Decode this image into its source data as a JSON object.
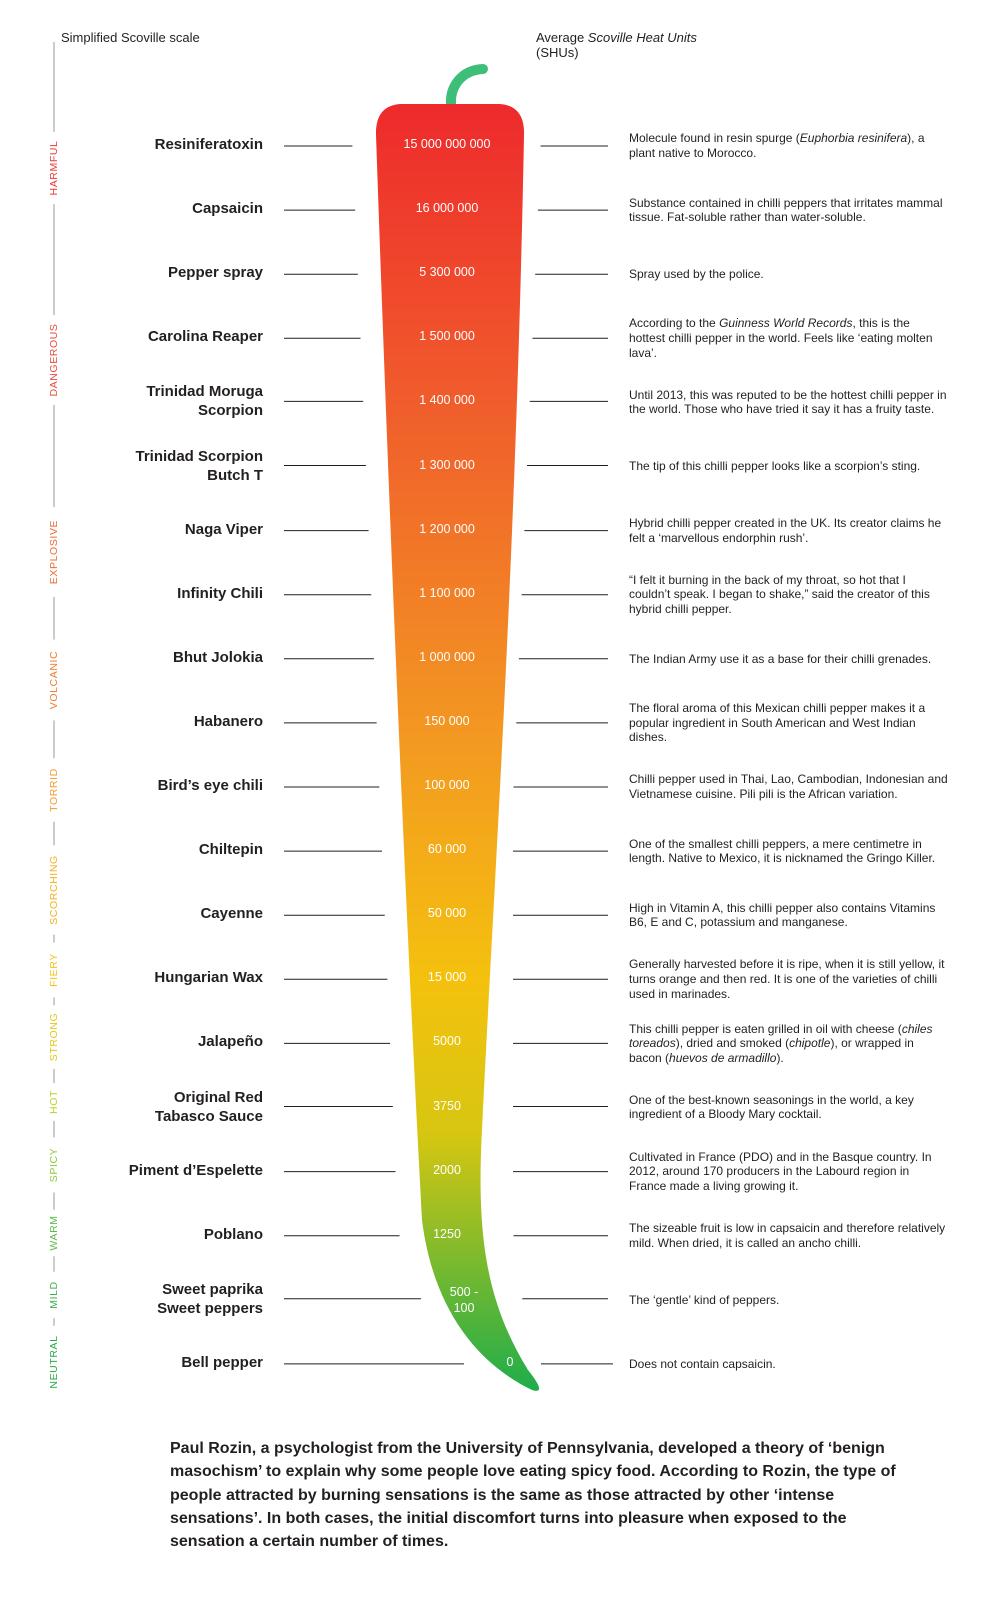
{
  "header": {
    "left_label": "Simplified Scoville scale",
    "right_label_prefix": "Average ",
    "right_label_italic": "Scoville Heat Units",
    "right_label_suffix": "(SHUs)"
  },
  "scale_levels": [
    {
      "label": "HARMFUL",
      "color": "#e83a3a"
    },
    {
      "label": "DANGEROUS",
      "color": "#ea4b3a"
    },
    {
      "label": "EXPLOSIVE",
      "color": "#ef6a33"
    },
    {
      "label": "VOLCANIC",
      "color": "#f07d2e"
    },
    {
      "label": "TORRID",
      "color": "#f39a2a"
    },
    {
      "label": "SCORCHING",
      "color": "#f5b020"
    },
    {
      "label": "FIERY",
      "color": "#f2c41a"
    },
    {
      "label": "STRONG",
      "color": "#e2c71a"
    },
    {
      "label": "HOT",
      "color": "#bdd12a"
    },
    {
      "label": "SPICY",
      "color": "#8fc83a"
    },
    {
      "label": "WARM",
      "color": "#5cb949"
    },
    {
      "label": "MILD",
      "color": "#3fb04c"
    },
    {
      "label": "NEUTRAL",
      "color": "#2aa84a"
    }
  ],
  "colors": {
    "pepper_top": "#ee2a2c",
    "pepper_upper": "#f05a2c",
    "pepper_mid": "#f39a21",
    "pepper_yellow": "#f4c10e",
    "pepper_lower": "#d7c611",
    "pepper_bottom": "#1ead4b",
    "stem": "#3dbf7a",
    "lines": "#231f20"
  },
  "chart_data": {
    "type": "table",
    "rows": [
      {
        "name": "Resiniferatoxin",
        "shu": "15 000 000 000",
        "desc_html": "Molecule found in resin spurge (<em>Euphorbia resinifera</em>), a plant native to Morocco."
      },
      {
        "name": "Capsaicin",
        "shu": "16 000 000",
        "desc_html": "Substance contained in chilli peppers that irritates mammal tissue. Fat-soluble rather than water-soluble."
      },
      {
        "name": "Pepper spray",
        "shu": "5 300 000",
        "desc_html": "Spray used by the police."
      },
      {
        "name": "Carolina Reaper",
        "shu": "1 500 000",
        "desc_html": "According to the <em>Guinness World Records</em>, this is the hottest chilli pepper in the world. Feels like ‘eating molten lava’."
      },
      {
        "name": "Trinidad Moruga Scorpion",
        "shu": "1 400 000",
        "desc_html": "Until 2013, this was reputed to be the hottest chilli pepper in the world. Those who have tried it say it has a fruity taste."
      },
      {
        "name": "Trinidad Scorpion Butch T",
        "shu": "1 300 000",
        "desc_html": "The tip of this chilli pepper looks like a scorpion’s sting."
      },
      {
        "name": "Naga Viper",
        "shu": "1 200 000",
        "desc_html": "Hybrid chilli pepper created in the UK. Its creator claims he felt a ‘marvellous endorphin rush’."
      },
      {
        "name": "Infinity Chili",
        "shu": "1 100 000",
        "desc_html": "“I felt it burning in the back of my throat, so hot that I couldn’t speak. I began to shake,” said the creator of this hybrid chilli pepper."
      },
      {
        "name": "Bhut Jolokia",
        "shu": "1 000 000",
        "desc_html": "The Indian Army use it as a base for their chilli grenades."
      },
      {
        "name": "Habanero",
        "shu": "150 000",
        "desc_html": "The floral aroma of this Mexican chilli pepper makes it a popular ingredient in South American and West Indian dishes."
      },
      {
        "name": "Bird’s eye chili",
        "shu": "100 000",
        "desc_html": "Chilli pepper used in Thai, Lao, Cambodian, Indonesian and Vietnamese cuisine. Pili pili is the African variation."
      },
      {
        "name": "Chiltepin",
        "shu": "60 000",
        "desc_html": "One of the smallest chilli peppers, a mere centimetre in length. Native to Mexico, it is nicknamed the Gringo Killer."
      },
      {
        "name": "Cayenne",
        "shu": "50 000",
        "desc_html": "High in Vitamin A, this chilli pepper also contains Vitamins B6, E and C, potassium and manganese."
      },
      {
        "name": "Hungarian Wax",
        "shu": "15 000",
        "desc_html": "Generally harvested before it is ripe, when it is still yellow, it turns orange and then red. It is one of the varieties of chilli used in marinades."
      },
      {
        "name": "Jalapeño",
        "shu": "5000",
        "desc_html": "This chilli pepper is eaten grilled in oil with cheese (<em>chiles toreados</em>), dried and smoked (<em>chipotle</em>), or wrapped in bacon (<em>huevos de armadillo</em>)."
      },
      {
        "name": "Original Red Tabasco Sauce",
        "shu": "3750",
        "desc_html": "One of the best-known seasonings in the world, a key ingredient of a Bloody Mary cocktail."
      },
      {
        "name": "Piment d’Espelette",
        "shu": "2000",
        "desc_html": "Cultivated in France (PDO) and in the Basque country. In 2012, around 170 producers in the Labourd region in France made a living growing it."
      },
      {
        "name": "Poblano",
        "shu": "1250",
        "desc_html": "The sizeable fruit is low in capsaicin and therefore relatively mild. When dried, it is called an ancho chilli."
      },
      {
        "name": "Sweet paprika Sweet peppers",
        "shu": "500 - 100",
        "desc_html": "The ‘gentle’ kind of peppers."
      },
      {
        "name": "Bell pepper",
        "shu": "0",
        "desc_html": "Does not contain capsaicin."
      }
    ]
  },
  "footer_text": "Paul Rozin, a psychologist from the University of Pennsylvania, developed a theory of ‘benign masochism’ to explain why some people love eating spicy food. According to Rozin, the type of people attracted by burning sensations is the same as those attracted by other ‘intense sensations’. In both cases, the initial discomfort turns into pleasure when exposed to the sensation a certain number of times."
}
